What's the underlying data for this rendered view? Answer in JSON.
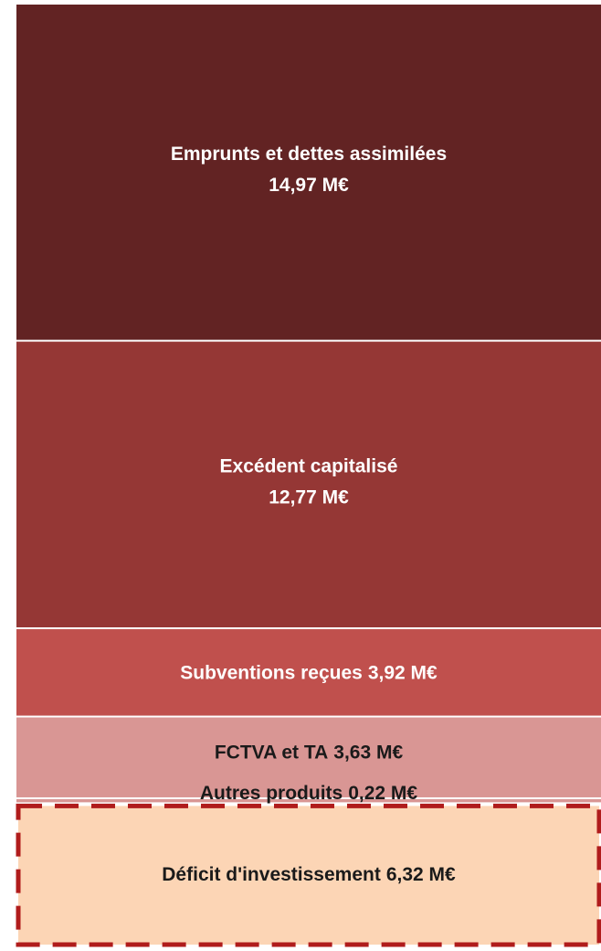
{
  "chart_data": {
    "type": "stacked-column",
    "categories": [
      "Emprunts et dettes assimilées",
      "Excédent capitalisé",
      "Subventions reçues",
      "FCTVA et TA",
      "Autres produits",
      "Déficit d'investissement"
    ],
    "values": [
      14.97,
      12.77,
      3.92,
      3.63,
      0.22,
      6.32
    ],
    "value_labels": [
      "14,97 M€",
      "12,77 M€",
      "3,92 M€",
      "3,63 M€",
      "0,22 M€",
      "6,32 M€"
    ],
    "colors": [
      "#622323",
      "#953735",
      "#c0504d",
      "#d99694",
      "#d99694",
      "#fcd5b5"
    ],
    "label_colors": [
      "#ffffff",
      "#ffffff",
      "#ffffff",
      "#1a1a1a",
      "#1a1a1a",
      "#1a1a1a"
    ],
    "dashed_border_color": "#b01c1c"
  }
}
